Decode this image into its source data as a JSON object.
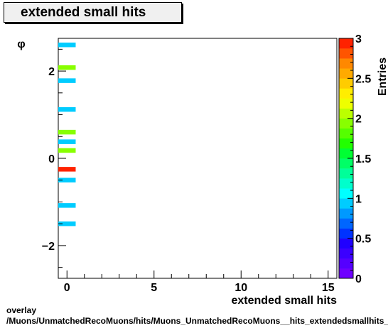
{
  "chart_data": {
    "type": "heatmap",
    "title": "extended small hits",
    "xlabel": "extended small hits",
    "ylabel": "φ",
    "zlabel": "Entries",
    "xlim": [
      -0.5,
      15.5
    ],
    "ylim": [
      -2.75,
      2.75
    ],
    "zlim": [
      0,
      3
    ],
    "x_ticks": [
      0,
      5,
      10,
      15
    ],
    "y_ticks": [
      -2,
      0,
      2
    ],
    "z_ticks": [
      "0",
      "0.5",
      "1",
      "1.5",
      "2",
      "2.5",
      "3"
    ],
    "cells": [
      {
        "x": 0,
        "y": 2.6,
        "count": 1
      },
      {
        "x": 0,
        "y": 2.08,
        "count": 2
      },
      {
        "x": 0,
        "y": 1.78,
        "count": 1
      },
      {
        "x": 0,
        "y": 1.12,
        "count": 1
      },
      {
        "x": 0,
        "y": 0.6,
        "count": 2
      },
      {
        "x": 0,
        "y": 0.38,
        "count": 1
      },
      {
        "x": 0,
        "y": 0.18,
        "count": 2
      },
      {
        "x": 0,
        "y": -0.25,
        "count": 3
      },
      {
        "x": 0,
        "y": -0.5,
        "count": 1
      },
      {
        "x": 0,
        "y": -1.08,
        "count": 1
      },
      {
        "x": 0,
        "y": -1.5,
        "count": 1
      }
    ]
  },
  "footer": {
    "line1": "overlay",
    "line2": "/Muons/UnmatchedRecoMuons/hits/Muons_UnmatchedRecoMuons__hits_extendedsmallhits_vs_phi"
  }
}
